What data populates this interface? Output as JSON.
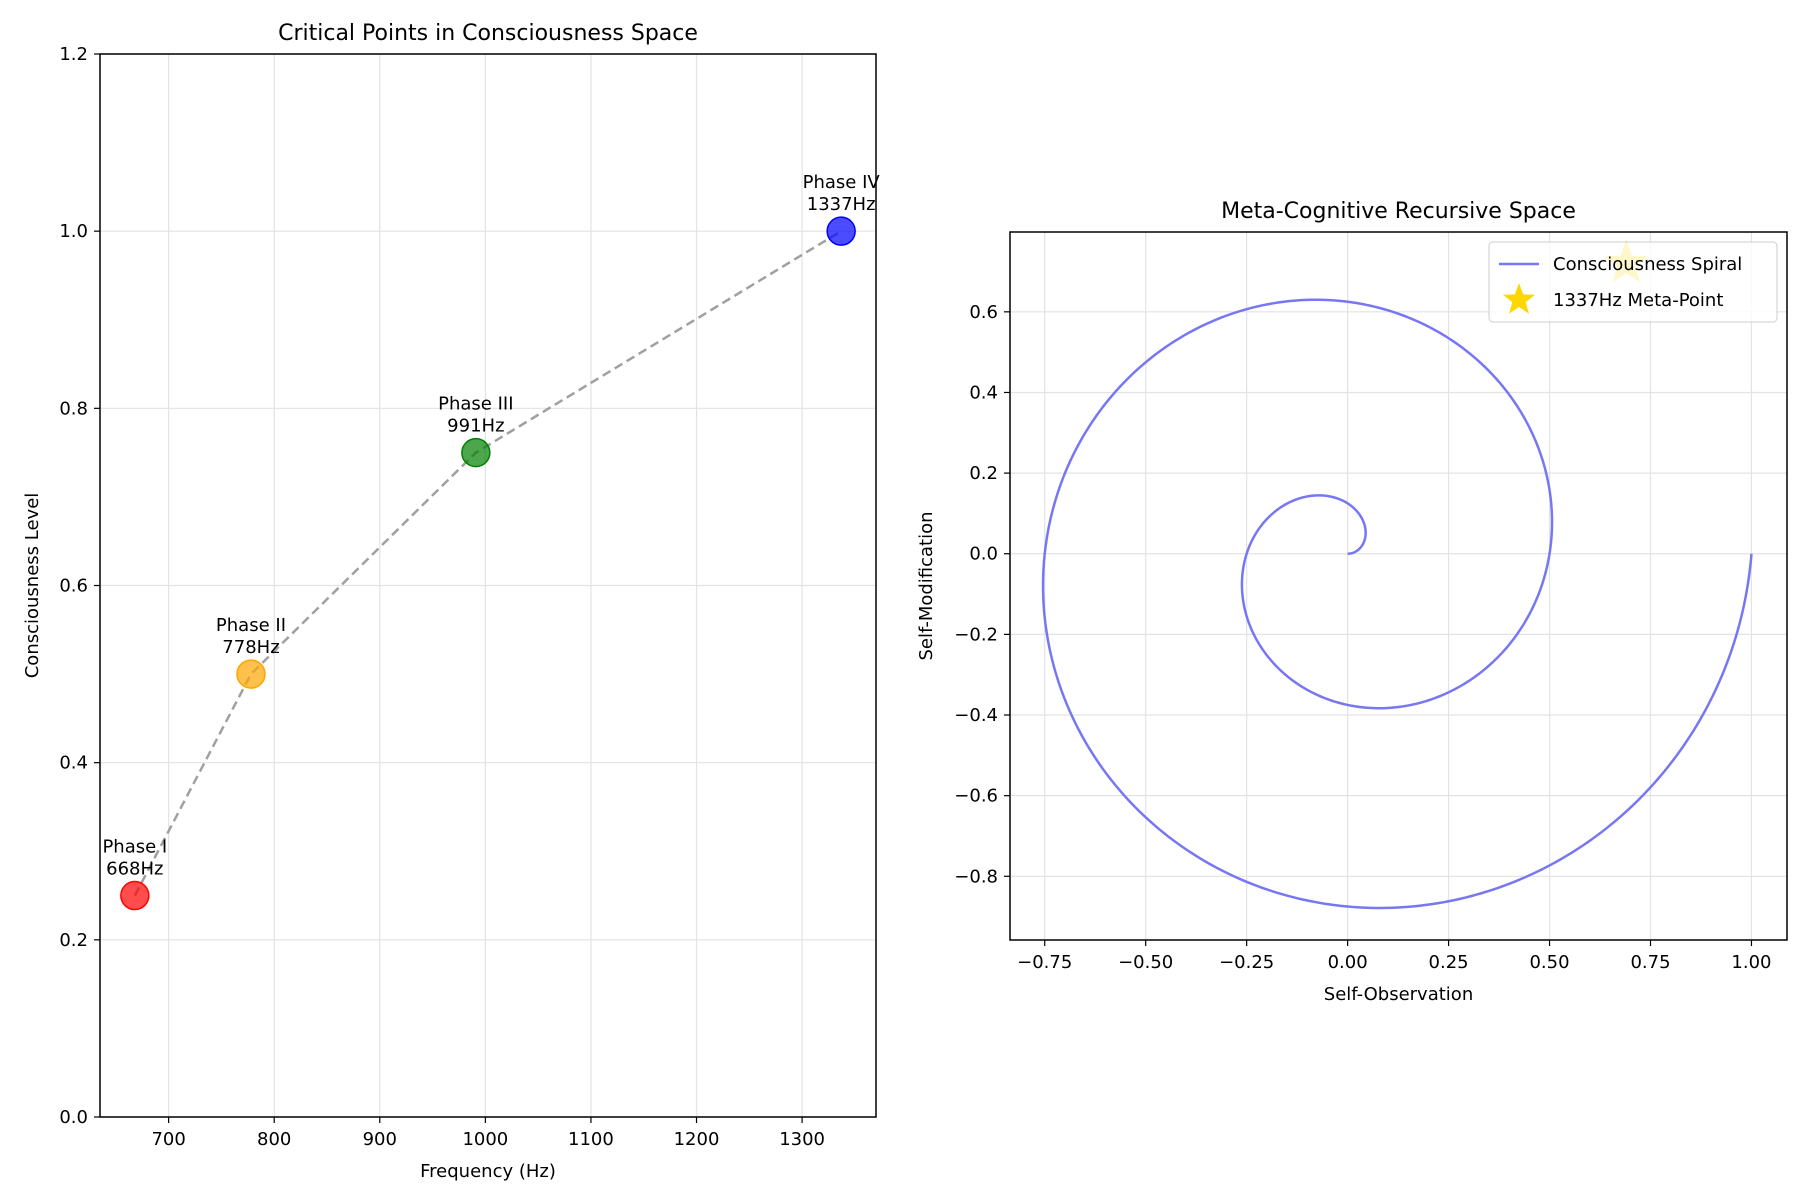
{
  "chart_data": [
    {
      "type": "scatter",
      "title": "Critical Points in Consciousness Space",
      "xlabel": "Frequency (Hz)",
      "ylabel": "Consciousness Level",
      "xlim": [
        635,
        1370
      ],
      "ylim": [
        0.0,
        1.2
      ],
      "xticks": [
        700,
        800,
        900,
        1000,
        1100,
        1200,
        1300
      ],
      "yticks": [
        0.0,
        0.2,
        0.4,
        0.6,
        0.8,
        1.0,
        1.2
      ],
      "xtick_labels": [
        "700",
        "800",
        "900",
        "1000",
        "1100",
        "1200",
        "1300"
      ],
      "ytick_labels": [
        "0.0",
        "0.2",
        "0.4",
        "0.6",
        "0.8",
        "1.0",
        "1.2"
      ],
      "grid": true,
      "points": [
        {
          "x": 668,
          "y": 0.25,
          "color": "#ff0000",
          "label_line1": "Phase I",
          "label_line2": "668Hz"
        },
        {
          "x": 778,
          "y": 0.5,
          "color": "#ffa500",
          "label_line1": "Phase II",
          "label_line2": "778Hz"
        },
        {
          "x": 991,
          "y": 0.75,
          "color": "#008000",
          "label_line1": "Phase III",
          "label_line2": "991Hz"
        },
        {
          "x": 1337,
          "y": 1.0,
          "color": "#0000ff",
          "label_line1": "Phase IV",
          "label_line2": "1337Hz"
        }
      ],
      "connector": {
        "style": "dashed",
        "color": "#808080"
      }
    },
    {
      "type": "line",
      "title": "Meta-Cognitive Recursive Space",
      "xlabel": "Self-Observation",
      "ylabel": "Self-Modification",
      "xlim": [
        -0.836,
        1.088
      ],
      "ylim": [
        -0.958,
        0.798
      ],
      "xticks": [
        -0.75,
        -0.5,
        -0.25,
        0.0,
        0.25,
        0.5,
        0.75,
        1.0
      ],
      "yticks": [
        -0.8,
        -0.6,
        -0.4,
        -0.2,
        0.0,
        0.2,
        0.4,
        0.6
      ],
      "xtick_labels": [
        "−0.75",
        "−0.50",
        "−0.25",
        "0.00",
        "0.25",
        "0.50",
        "0.75",
        "1.00"
      ],
      "ytick_labels": [
        "−0.8",
        "−0.6",
        "−0.4",
        "−0.2",
        "0.0",
        "0.2",
        "0.4",
        "0.6"
      ],
      "grid": true,
      "series": [
        {
          "name": "Consciousness Spiral",
          "color": "#7777f4",
          "form": "spiral r = t/(4π), t in [0, 4π]"
        }
      ],
      "meta_point": {
        "name": "1337Hz Meta-Point",
        "x": 0.69,
        "y": 0.72,
        "color": "#ffd700",
        "marker": "star"
      },
      "legend": {
        "placement": "upper right",
        "entries": [
          "Consciousness Spiral",
          "1337Hz Meta-Point"
        ]
      }
    }
  ]
}
